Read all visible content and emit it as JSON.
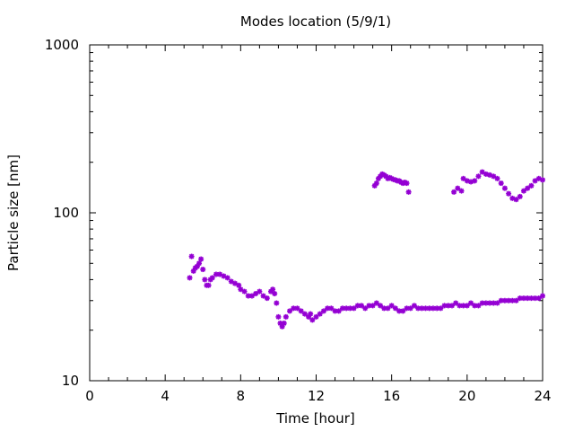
{
  "chart_data": {
    "type": "scatter",
    "title": "Modes location (5/9/1)",
    "xlabel": "Time [hour]",
    "ylabel": "Particle size [nm]",
    "xlim": [
      0,
      24
    ],
    "ylim": [
      10,
      1000
    ],
    "yscale": "log",
    "xticks": [
      0,
      4,
      8,
      12,
      16,
      20,
      24
    ],
    "xtick_labels": [
      "0",
      "4",
      "8",
      "12",
      "16",
      "20",
      "24"
    ],
    "yticks": [
      10,
      100,
      1000
    ],
    "ytick_labels": [
      "10",
      "100",
      "1000"
    ],
    "grid": false,
    "marker_color": "#9400d3",
    "series": [
      {
        "values": [
          [
            5.3,
            41
          ],
          [
            5.4,
            55
          ],
          [
            5.5,
            45
          ],
          [
            5.6,
            47
          ],
          [
            5.7,
            48
          ],
          [
            5.8,
            50
          ],
          [
            5.9,
            53
          ],
          [
            6.0,
            46
          ],
          [
            6.1,
            40
          ],
          [
            6.2,
            37
          ],
          [
            6.3,
            37
          ],
          [
            6.4,
            40
          ],
          [
            6.5,
            41
          ],
          [
            6.7,
            43
          ],
          [
            6.9,
            43
          ],
          [
            7.1,
            42
          ],
          [
            7.3,
            41
          ],
          [
            7.5,
            39
          ],
          [
            7.7,
            38
          ],
          [
            7.9,
            37
          ],
          [
            8.0,
            35
          ],
          [
            8.2,
            34
          ],
          [
            8.4,
            32
          ],
          [
            8.6,
            32
          ],
          [
            8.8,
            33
          ],
          [
            9.0,
            34
          ],
          [
            9.2,
            32
          ],
          [
            9.4,
            31
          ],
          [
            9.6,
            34
          ],
          [
            9.7,
            35
          ],
          [
            9.8,
            33
          ],
          [
            9.9,
            29
          ],
          [
            10.0,
            24
          ],
          [
            10.1,
            22
          ],
          [
            10.2,
            21
          ],
          [
            10.3,
            22
          ],
          [
            10.4,
            24
          ],
          [
            10.6,
            26
          ],
          [
            10.8,
            27
          ],
          [
            11.0,
            27
          ],
          [
            11.2,
            26
          ],
          [
            11.4,
            25
          ],
          [
            11.6,
            24
          ],
          [
            11.7,
            25
          ],
          [
            11.8,
            23
          ],
          [
            12.0,
            24
          ],
          [
            12.2,
            25
          ],
          [
            12.4,
            26
          ],
          [
            12.6,
            27
          ],
          [
            12.8,
            27
          ],
          [
            13.0,
            26
          ],
          [
            13.2,
            26
          ],
          [
            13.4,
            27
          ],
          [
            13.6,
            27
          ],
          [
            13.8,
            27
          ],
          [
            14.0,
            27
          ],
          [
            14.2,
            28
          ],
          [
            14.4,
            28
          ],
          [
            14.6,
            27
          ],
          [
            14.8,
            28
          ],
          [
            15.0,
            28
          ],
          [
            15.2,
            29
          ],
          [
            15.4,
            28
          ],
          [
            15.6,
            27
          ],
          [
            15.8,
            27
          ],
          [
            16.0,
            28
          ],
          [
            16.2,
            27
          ],
          [
            16.4,
            26
          ],
          [
            16.6,
            26
          ],
          [
            16.8,
            27
          ],
          [
            17.0,
            27
          ],
          [
            17.2,
            28
          ],
          [
            17.4,
            27
          ],
          [
            17.6,
            27
          ],
          [
            17.8,
            27
          ],
          [
            18.0,
            27
          ],
          [
            18.2,
            27
          ],
          [
            18.4,
            27
          ],
          [
            18.6,
            27
          ],
          [
            18.8,
            28
          ],
          [
            19.0,
            28
          ],
          [
            19.2,
            28
          ],
          [
            19.4,
            29
          ],
          [
            19.6,
            28
          ],
          [
            19.8,
            28
          ],
          [
            20.0,
            28
          ],
          [
            20.2,
            29
          ],
          [
            20.4,
            28
          ],
          [
            20.6,
            28
          ],
          [
            20.8,
            29
          ],
          [
            21.0,
            29
          ],
          [
            21.2,
            29
          ],
          [
            21.4,
            29
          ],
          [
            21.6,
            29
          ],
          [
            21.8,
            30
          ],
          [
            22.0,
            30
          ],
          [
            22.2,
            30
          ],
          [
            22.4,
            30
          ],
          [
            22.6,
            30
          ],
          [
            22.8,
            31
          ],
          [
            23.0,
            31
          ],
          [
            23.2,
            31
          ],
          [
            23.4,
            31
          ],
          [
            23.6,
            31
          ],
          [
            23.8,
            31
          ],
          [
            24.0,
            32
          ]
        ]
      },
      {
        "values": [
          [
            15.1,
            145
          ],
          [
            15.2,
            150
          ],
          [
            15.3,
            160
          ],
          [
            15.4,
            165
          ],
          [
            15.5,
            170
          ],
          [
            15.6,
            168
          ],
          [
            15.7,
            165
          ],
          [
            15.8,
            160
          ],
          [
            15.9,
            162
          ],
          [
            16.0,
            160
          ],
          [
            16.1,
            158
          ],
          [
            16.2,
            157
          ],
          [
            16.3,
            155
          ],
          [
            16.4,
            155
          ],
          [
            16.5,
            152
          ],
          [
            16.6,
            150
          ],
          [
            16.7,
            152
          ],
          [
            16.8,
            150
          ],
          [
            16.9,
            133
          ],
          [
            19.3,
            133
          ],
          [
            19.5,
            140
          ],
          [
            19.7,
            135
          ],
          [
            19.8,
            160
          ],
          [
            20.0,
            155
          ],
          [
            20.2,
            153
          ],
          [
            20.4,
            155
          ],
          [
            20.6,
            165
          ],
          [
            20.8,
            175
          ],
          [
            21.0,
            170
          ],
          [
            21.2,
            168
          ],
          [
            21.4,
            165
          ],
          [
            21.6,
            160
          ],
          [
            21.8,
            150
          ],
          [
            22.0,
            140
          ],
          [
            22.2,
            130
          ],
          [
            22.4,
            122
          ],
          [
            22.6,
            120
          ],
          [
            22.8,
            125
          ],
          [
            23.0,
            135
          ],
          [
            23.2,
            140
          ],
          [
            23.4,
            145
          ],
          [
            23.6,
            155
          ],
          [
            23.8,
            160
          ],
          [
            24.0,
            157
          ]
        ]
      }
    ]
  }
}
